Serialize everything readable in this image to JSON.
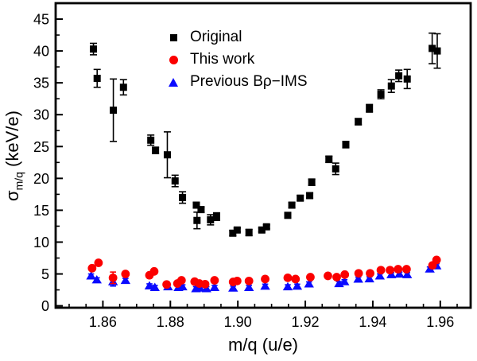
{
  "figure": {
    "background": "#ffffff",
    "axis_color": "#000000"
  },
  "legend": {
    "position": "upper-center",
    "items": [
      {
        "label": "Original",
        "marker": "square",
        "color": "#000000"
      },
      {
        "label": "This work",
        "marker": "circle",
        "color": "#fb0000"
      },
      {
        "label": "Previous Bρ−IMS",
        "marker": "triangle",
        "color": "#0a0aff"
      }
    ]
  },
  "chart_data": {
    "type": "scatter",
    "title": "",
    "xlabel": "m/q (u/e)",
    "ylabel": "σm/q (keV/e)",
    "ylabel_sigma": "σ",
    "ylabel_sub": "m/q",
    "ylabel_rest": " (keV/e)",
    "xlim": [
      1.846,
      1.969
    ],
    "ylim": [
      -0.3,
      47.5
    ],
    "grid": false,
    "x_major_ticks": [
      1.86,
      1.88,
      1.9,
      1.92,
      1.94,
      1.96
    ],
    "x_tick_labels": [
      "1.86",
      "1.88",
      "1.90",
      "1.92",
      "1.94",
      "1.96"
    ],
    "x_minor_start": 1.85,
    "x_minor_step": 0.005,
    "x_minor_count": 24,
    "y_major_ticks": [
      0,
      5,
      10,
      15,
      20,
      25,
      30,
      35,
      40,
      45
    ],
    "y_tick_labels": [
      "0",
      "5",
      "10",
      "15",
      "20",
      "25",
      "30",
      "35",
      "40",
      "45"
    ],
    "y_minor_start": 2.5,
    "y_minor_step": 5,
    "series": [
      {
        "name": "Original",
        "marker": "square",
        "color": "#000000",
        "zorder": 1,
        "points": [
          [
            1.8572,
            40.3,
            0.9
          ],
          [
            1.8583,
            35.7,
            1.4
          ],
          [
            1.8631,
            30.7,
            4.9
          ],
          [
            1.8661,
            34.3,
            1.2
          ],
          [
            1.8742,
            26.0,
            0.8
          ],
          [
            1.8756,
            24.4,
            0.5
          ],
          [
            1.8791,
            23.7,
            3.6
          ],
          [
            1.8814,
            19.6,
            0.9
          ],
          [
            1.8836,
            17.0,
            0.9
          ],
          [
            1.8877,
            15.8,
            0.4
          ],
          [
            1.8891,
            15.1,
            0.4
          ],
          [
            1.8879,
            13.4,
            1.3
          ],
          [
            1.8919,
            13.5,
            0.8
          ],
          [
            1.8937,
            14.0,
            0.6
          ],
          [
            1.8985,
            11.4,
            0.4
          ],
          [
            1.8998,
            11.9,
            0.3
          ],
          [
            1.9033,
            11.5,
            0.5
          ],
          [
            1.9071,
            11.9,
            0.3
          ],
          [
            1.9085,
            12.4,
            0.3
          ],
          [
            1.9148,
            14.2,
            0.4
          ],
          [
            1.916,
            15.8,
            0.4
          ],
          [
            1.9185,
            16.9,
            0.4
          ],
          [
            1.9213,
            17.3,
            0.4
          ],
          [
            1.9219,
            19.4,
            0.5
          ],
          [
            1.927,
            23.0,
            0.5
          ],
          [
            1.929,
            21.5,
            0.9
          ],
          [
            1.932,
            25.3,
            0.5
          ],
          [
            1.9357,
            28.9,
            0.5
          ],
          [
            1.939,
            31.0,
            0.6
          ],
          [
            1.9424,
            33.2,
            0.7
          ],
          [
            1.9455,
            34.5,
            1.0
          ],
          [
            1.9477,
            36.1,
            0.9
          ],
          [
            1.9502,
            35.6,
            1.5
          ],
          [
            1.9576,
            40.4,
            2.4
          ],
          [
            1.9591,
            40.0,
            2.7
          ]
        ]
      },
      {
        "name": "This work",
        "marker": "circle",
        "color": "#fb0000",
        "zorder": 3,
        "points": [
          [
            1.8568,
            5.9,
            0.3
          ],
          [
            1.8587,
            6.75,
            0.3
          ],
          [
            1.863,
            4.4,
            0.9
          ],
          [
            1.8667,
            5.0,
            0.3
          ],
          [
            1.8738,
            4.8,
            0.3
          ],
          [
            1.8752,
            5.4,
            0.3
          ],
          [
            1.8789,
            3.35,
            0.3
          ],
          [
            1.8821,
            3.5,
            0.3
          ],
          [
            1.8833,
            4.0,
            0.3
          ],
          [
            1.8872,
            3.8,
            0.3
          ],
          [
            1.8886,
            3.5,
            0.3
          ],
          [
            1.8903,
            3.4,
            0.3
          ],
          [
            1.8931,
            4.0,
            0.3
          ],
          [
            1.8986,
            3.75,
            0.3
          ],
          [
            1.8998,
            3.9,
            0.3
          ],
          [
            1.9033,
            3.9,
            0.3
          ],
          [
            1.9081,
            4.2,
            0.3
          ],
          [
            1.9148,
            4.4,
            0.3
          ],
          [
            1.9171,
            4.2,
            0.3
          ],
          [
            1.9215,
            4.5,
            0.3
          ],
          [
            1.9267,
            4.7,
            0.3
          ],
          [
            1.9293,
            4.5,
            0.3
          ],
          [
            1.9317,
            4.9,
            0.3
          ],
          [
            1.9358,
            5.1,
            0.3
          ],
          [
            1.9392,
            5.1,
            0.3
          ],
          [
            1.9424,
            5.6,
            0.3
          ],
          [
            1.9451,
            5.6,
            0.3
          ],
          [
            1.9475,
            5.75,
            0.3
          ],
          [
            1.95,
            5.75,
            0.3
          ],
          [
            1.9577,
            6.35,
            0.3
          ],
          [
            1.9589,
            7.2,
            0.3
          ]
        ]
      },
      {
        "name": "Previous Bρ−IMS",
        "marker": "triangle",
        "color": "#0a0aff",
        "zorder": 2,
        "points": [
          [
            1.8565,
            4.7,
            0.3
          ],
          [
            1.8582,
            4.1,
            0.3
          ],
          [
            1.863,
            3.8,
            0.7
          ],
          [
            1.8667,
            4.0,
            0.3
          ],
          [
            1.8738,
            3.15,
            0.3
          ],
          [
            1.8754,
            2.9,
            0.3
          ],
          [
            1.8793,
            3.0,
            0.3
          ],
          [
            1.8824,
            2.9,
            0.3
          ],
          [
            1.8836,
            3.0,
            0.3
          ],
          [
            1.8876,
            2.7,
            0.3
          ],
          [
            1.8888,
            2.8,
            0.3
          ],
          [
            1.8907,
            2.7,
            0.3
          ],
          [
            1.8931,
            2.9,
            0.3
          ],
          [
            1.8986,
            2.8,
            0.3
          ],
          [
            1.9033,
            2.9,
            0.3
          ],
          [
            1.9081,
            3.1,
            0.3
          ],
          [
            1.9148,
            3.0,
            0.3
          ],
          [
            1.9176,
            3.1,
            0.3
          ],
          [
            1.9211,
            3.45,
            0.3
          ],
          [
            1.93,
            3.5,
            0.3
          ],
          [
            1.9316,
            3.8,
            0.3
          ],
          [
            1.9357,
            4.2,
            0.3
          ],
          [
            1.939,
            4.25,
            0.3
          ],
          [
            1.9421,
            4.7,
            0.3
          ],
          [
            1.9455,
            4.9,
            0.3
          ],
          [
            1.9479,
            5.0,
            0.3
          ],
          [
            1.9502,
            4.9,
            0.3
          ],
          [
            1.9569,
            5.8,
            0.3
          ],
          [
            1.9589,
            6.3,
            0.3
          ]
        ]
      }
    ]
  }
}
